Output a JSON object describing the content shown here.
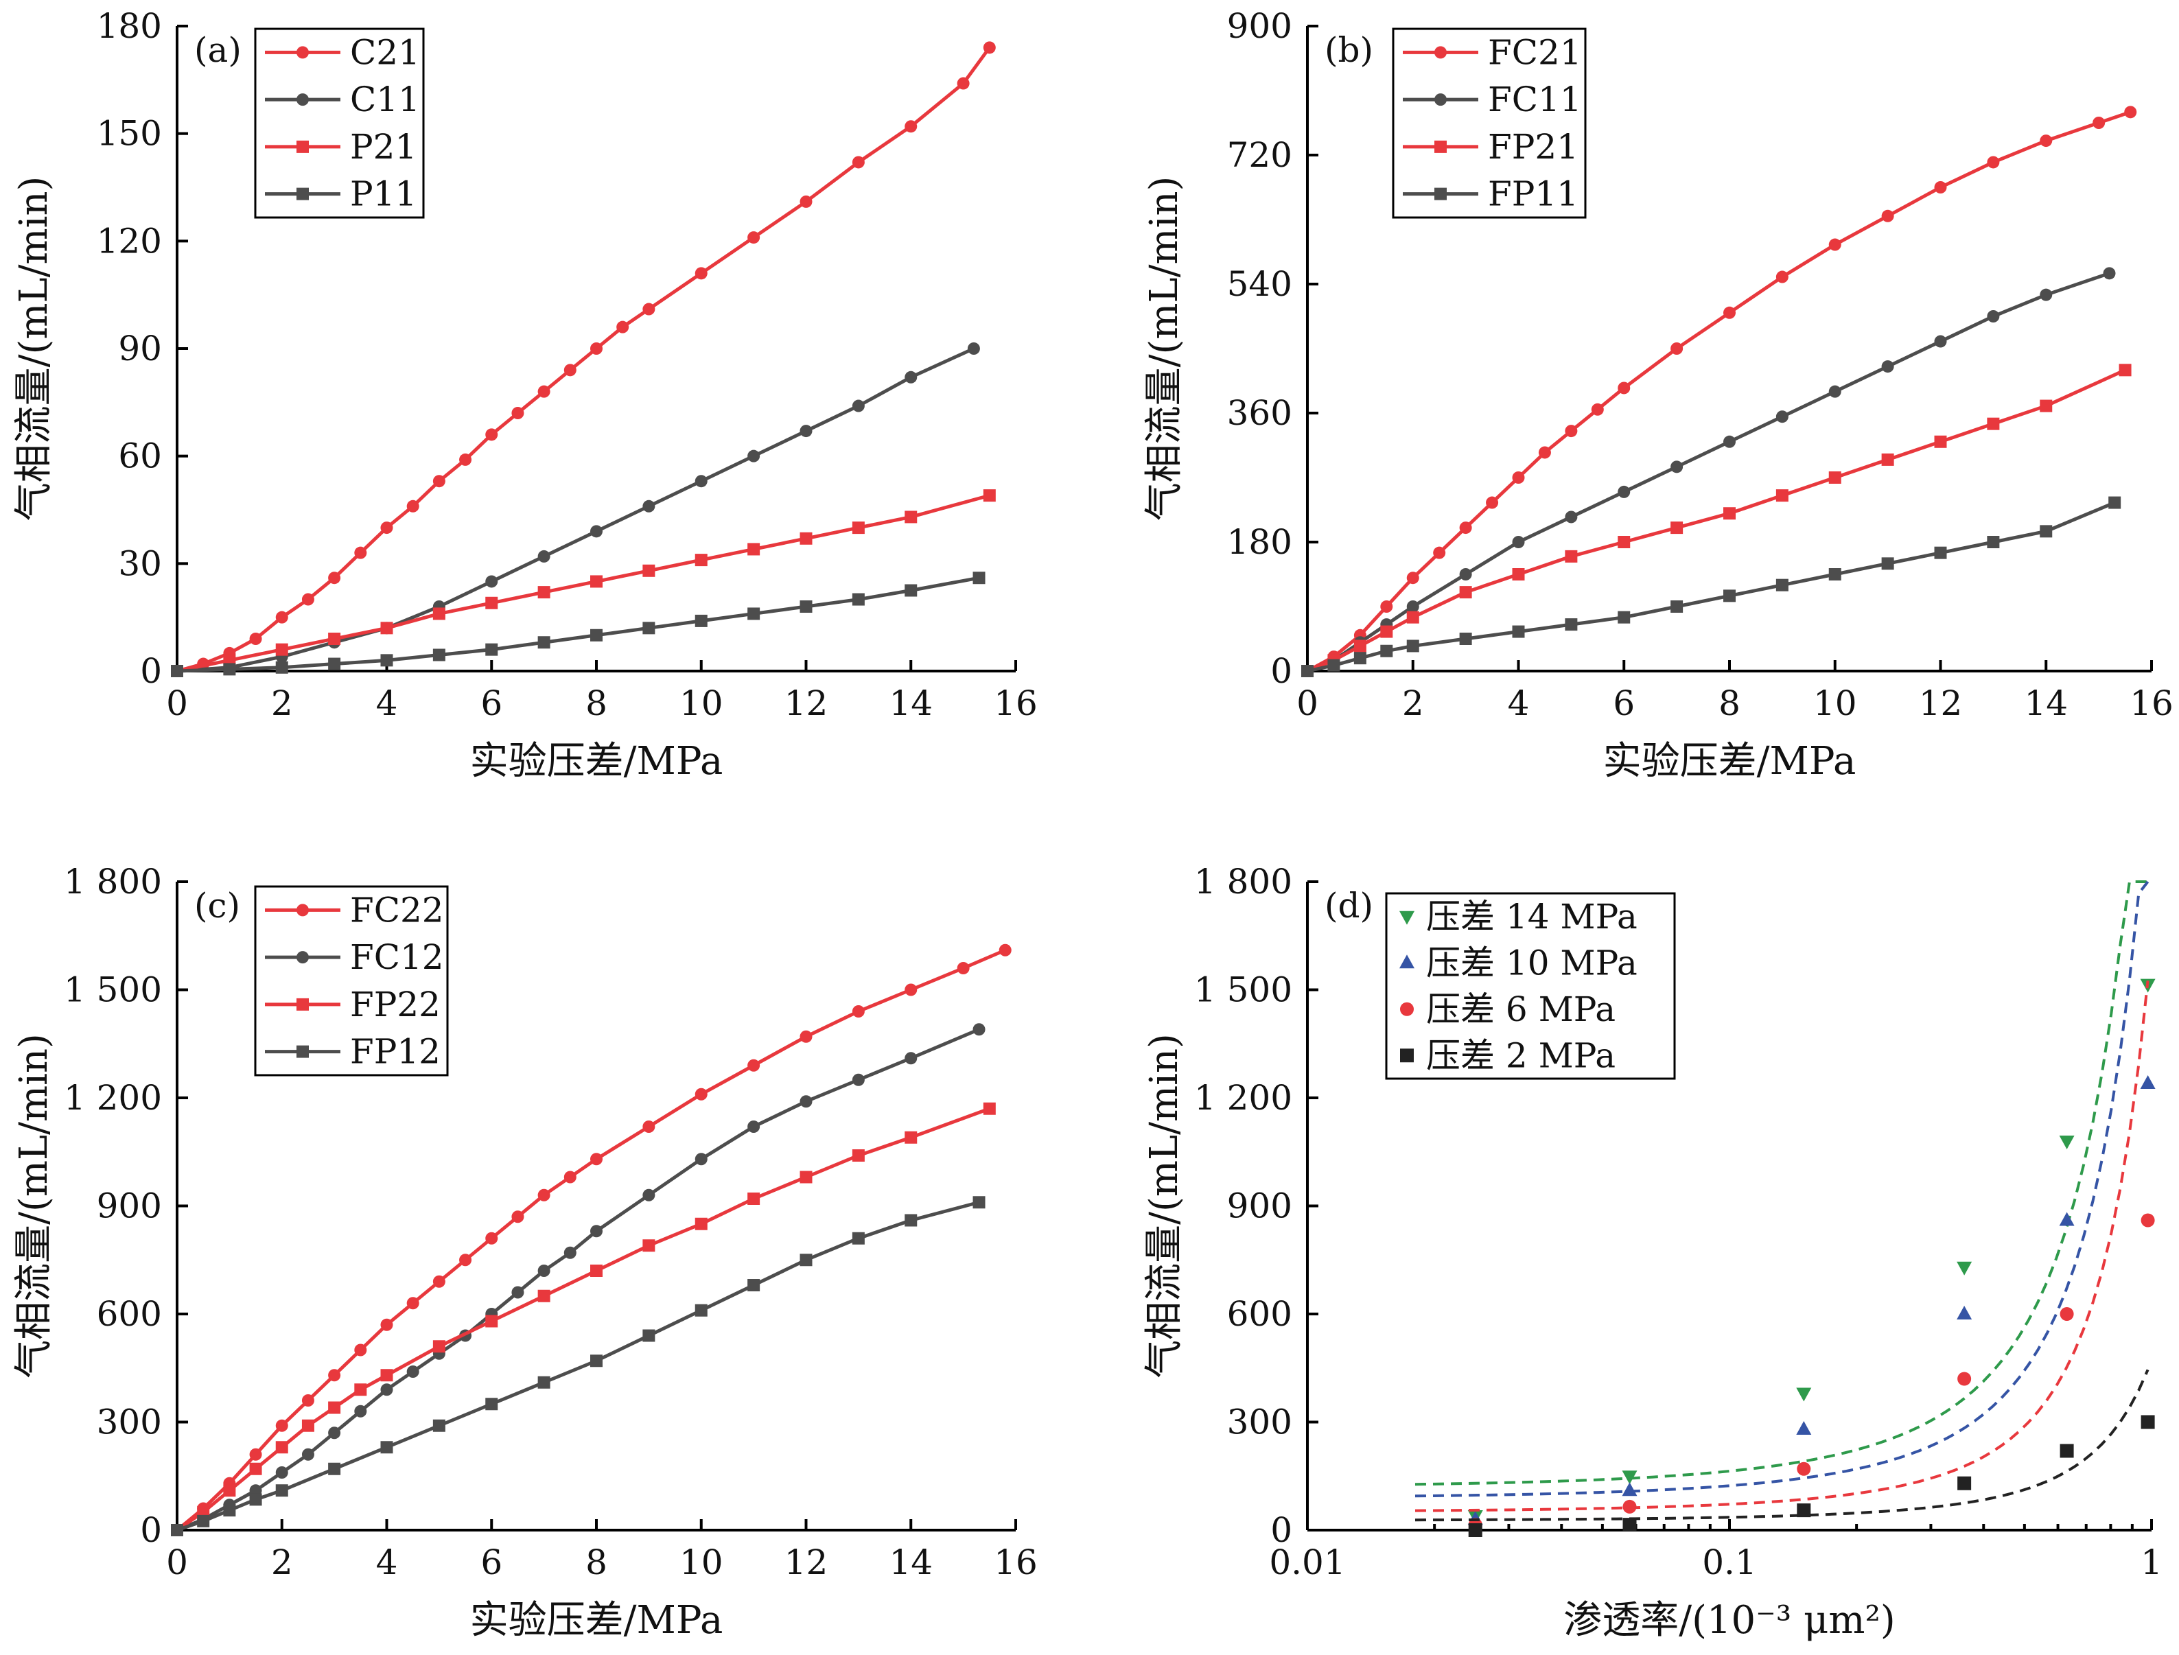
{
  "chart_data": [
    {
      "type": "line",
      "panel_label": "(a)",
      "xlabel": "实验压差/MPa",
      "ylabel": "气相流量/(mL/min)",
      "xlim": [
        0,
        16
      ],
      "ylim": [
        0,
        180
      ],
      "xticks": [
        0,
        2,
        4,
        6,
        8,
        10,
        12,
        14,
        16
      ],
      "xtick_labels": [
        "0",
        "2",
        "4",
        "6",
        "8",
        "10",
        "12",
        "14",
        "16"
      ],
      "yticks": [
        0,
        30,
        60,
        90,
        120,
        150,
        180
      ],
      "ytick_labels": [
        "0",
        "30",
        "60",
        "90",
        "120",
        "150",
        "180"
      ],
      "legend_position": "top-left",
      "grid": false,
      "series": [
        {
          "name": "C21",
          "color": "#e8383d",
          "marker": "circle",
          "x": [
            0,
            0.5,
            1,
            1.5,
            2,
            2.5,
            3,
            3.5,
            4,
            4.5,
            5,
            5.5,
            6,
            6.5,
            7,
            7.5,
            8,
            8.5,
            9,
            10,
            11,
            12,
            13,
            14,
            15,
            15.5
          ],
          "y": [
            0,
            2,
            5,
            9,
            15,
            20,
            26,
            33,
            40,
            46,
            53,
            59,
            66,
            72,
            78,
            84,
            90,
            96,
            101,
            111,
            121,
            131,
            142,
            152,
            164,
            174
          ]
        },
        {
          "name": "C11",
          "color": "#4d4d4d",
          "marker": "circle",
          "x": [
            0,
            1,
            2,
            3,
            4,
            5,
            6,
            7,
            8,
            9,
            10,
            11,
            12,
            13,
            14,
            15.2
          ],
          "y": [
            0,
            1,
            4,
            8,
            12,
            18,
            25,
            32,
            39,
            46,
            53,
            60,
            67,
            74,
            82,
            90
          ]
        },
        {
          "name": "P21",
          "color": "#e8383d",
          "marker": "square",
          "x": [
            0,
            1,
            2,
            3,
            4,
            5,
            6,
            7,
            8,
            9,
            10,
            11,
            12,
            13,
            14,
            15.5
          ],
          "y": [
            0,
            3,
            6,
            9,
            12,
            16,
            19,
            22,
            25,
            28,
            31,
            34,
            37,
            40,
            43,
            49
          ]
        },
        {
          "name": "P11",
          "color": "#4d4d4d",
          "marker": "square",
          "x": [
            0,
            1,
            2,
            3,
            4,
            5,
            6,
            7,
            8,
            9,
            10,
            11,
            12,
            13,
            14,
            15.3
          ],
          "y": [
            0,
            0.5,
            1,
            2,
            3,
            4.5,
            6,
            8,
            10,
            12,
            14,
            16,
            18,
            20,
            22.5,
            26
          ]
        }
      ]
    },
    {
      "type": "line",
      "panel_label": "(b)",
      "xlabel": "实验压差/MPa",
      "ylabel": "气相流量/(mL/min)",
      "xlim": [
        0,
        16
      ],
      "ylim": [
        0,
        900
      ],
      "xticks": [
        0,
        2,
        4,
        6,
        8,
        10,
        12,
        14,
        16
      ],
      "xtick_labels": [
        "0",
        "2",
        "4",
        "6",
        "8",
        "10",
        "12",
        "14",
        "16"
      ],
      "yticks": [
        0,
        180,
        360,
        540,
        720,
        900
      ],
      "ytick_labels": [
        "0",
        "180",
        "360",
        "540",
        "720",
        "900"
      ],
      "legend_position": "top-left",
      "grid": false,
      "series": [
        {
          "name": "FC21",
          "color": "#e8383d",
          "marker": "circle",
          "x": [
            0,
            0.5,
            1,
            1.5,
            2,
            2.5,
            3,
            3.5,
            4,
            4.5,
            5,
            5.5,
            6,
            7,
            8,
            9,
            10,
            11,
            12,
            13,
            14,
            15,
            15.6
          ],
          "y": [
            0,
            20,
            50,
            90,
            130,
            165,
            200,
            235,
            270,
            305,
            335,
            365,
            395,
            450,
            500,
            550,
            595,
            635,
            675,
            710,
            740,
            765,
            780
          ]
        },
        {
          "name": "FC11",
          "color": "#4d4d4d",
          "marker": "circle",
          "x": [
            0,
            0.5,
            1,
            1.5,
            2,
            3,
            4,
            5,
            6,
            7,
            8,
            9,
            10,
            11,
            12,
            13,
            14,
            15.2
          ],
          "y": [
            0,
            15,
            40,
            65,
            90,
            135,
            180,
            215,
            250,
            285,
            320,
            355,
            390,
            425,
            460,
            495,
            525,
            555
          ]
        },
        {
          "name": "FP21",
          "color": "#e8383d",
          "marker": "square",
          "x": [
            0,
            0.5,
            1,
            1.5,
            2,
            3,
            4,
            5,
            6,
            7,
            8,
            9,
            10,
            11,
            12,
            13,
            14,
            15.5
          ],
          "y": [
            0,
            15,
            35,
            55,
            75,
            110,
            135,
            160,
            180,
            200,
            220,
            245,
            270,
            295,
            320,
            345,
            370,
            420
          ]
        },
        {
          "name": "FP11",
          "color": "#4d4d4d",
          "marker": "square",
          "x": [
            0,
            0.5,
            1,
            1.5,
            2,
            3,
            4,
            5,
            6,
            7,
            8,
            9,
            10,
            11,
            12,
            13,
            14,
            15.3
          ],
          "y": [
            0,
            8,
            18,
            28,
            35,
            45,
            55,
            65,
            75,
            90,
            105,
            120,
            135,
            150,
            165,
            180,
            195,
            235
          ]
        }
      ]
    },
    {
      "type": "line",
      "panel_label": "(c)",
      "xlabel": "实验压差/MPa",
      "ylabel": "气相流量/(mL/min)",
      "xlim": [
        0,
        16
      ],
      "ylim": [
        0,
        1800
      ],
      "xticks": [
        0,
        2,
        4,
        6,
        8,
        10,
        12,
        14,
        16
      ],
      "xtick_labels": [
        "0",
        "2",
        "4",
        "6",
        "8",
        "10",
        "12",
        "14",
        "16"
      ],
      "yticks": [
        0,
        300,
        600,
        900,
        1200,
        1500,
        1800
      ],
      "ytick_labels": [
        "0",
        "300",
        "600",
        "900",
        "1 200",
        "1 500",
        "1 800"
      ],
      "legend_position": "top-left",
      "grid": false,
      "series": [
        {
          "name": "FC22",
          "color": "#e8383d",
          "marker": "circle",
          "x": [
            0,
            0.5,
            1,
            1.5,
            2,
            2.5,
            3,
            3.5,
            4,
            4.5,
            5,
            5.5,
            6,
            6.5,
            7,
            7.5,
            8,
            9,
            10,
            11,
            12,
            13,
            14,
            15,
            15.8
          ],
          "y": [
            0,
            60,
            130,
            210,
            290,
            360,
            430,
            500,
            570,
            630,
            690,
            750,
            810,
            870,
            930,
            980,
            1030,
            1120,
            1210,
            1290,
            1370,
            1440,
            1500,
            1560,
            1610
          ]
        },
        {
          "name": "FC12",
          "color": "#4d4d4d",
          "marker": "circle",
          "x": [
            0,
            0.5,
            1,
            1.5,
            2,
            2.5,
            3,
            3.5,
            4,
            4.5,
            5,
            5.5,
            6,
            6.5,
            7,
            7.5,
            8,
            9,
            10,
            11,
            12,
            13,
            14,
            15.3
          ],
          "y": [
            0,
            30,
            70,
            110,
            160,
            210,
            270,
            330,
            390,
            440,
            490,
            540,
            600,
            660,
            720,
            770,
            830,
            930,
            1030,
            1120,
            1190,
            1250,
            1310,
            1390
          ]
        },
        {
          "name": "FP22",
          "color": "#e8383d",
          "marker": "square",
          "x": [
            0,
            0.5,
            1,
            1.5,
            2,
            2.5,
            3,
            3.5,
            4,
            5,
            6,
            7,
            8,
            9,
            10,
            11,
            12,
            13,
            14,
            15.5
          ],
          "y": [
            0,
            50,
            110,
            170,
            230,
            290,
            340,
            390,
            430,
            510,
            580,
            650,
            720,
            790,
            850,
            920,
            980,
            1040,
            1090,
            1170
          ]
        },
        {
          "name": "FP12",
          "color": "#4d4d4d",
          "marker": "square",
          "x": [
            0,
            0.5,
            1,
            1.5,
            2,
            3,
            4,
            5,
            6,
            7,
            8,
            9,
            10,
            11,
            12,
            13,
            14,
            15.3
          ],
          "y": [
            0,
            25,
            55,
            85,
            110,
            170,
            230,
            290,
            350,
            410,
            470,
            540,
            610,
            680,
            750,
            810,
            860,
            910
          ]
        }
      ]
    },
    {
      "type": "scatter",
      "panel_label": "(d)",
      "xlabel": "渗透率/(10⁻³ μm²)",
      "ylabel": "气相流量/(mL/min)",
      "xscale": "log",
      "xlim": [
        0.01,
        1
      ],
      "ylim": [
        0,
        1800
      ],
      "xticks": [
        0.01,
        0.1,
        1
      ],
      "xtick_labels": [
        "0.01",
        "0.1",
        "1"
      ],
      "yticks": [
        0,
        300,
        600,
        900,
        1200,
        1500,
        1800
      ],
      "ytick_labels": [
        "0",
        "300",
        "600",
        "900",
        "1 200",
        "1 500",
        "1 800"
      ],
      "legend_position": "top-left",
      "grid": false,
      "fit_lines": "dashed exponential trend per series",
      "series": [
        {
          "name": "压差 14 MPa",
          "color": "#2e9a4b",
          "marker": "triangle-down",
          "x": [
            0.025,
            0.058,
            0.15,
            0.36,
            0.63,
            0.98
          ],
          "y": [
            40,
            150,
            380,
            730,
            1080,
            1515
          ]
        },
        {
          "name": "压差 10 MPa",
          "color": "#3554a5",
          "marker": "triangle-up",
          "x": [
            0.025,
            0.058,
            0.15,
            0.36,
            0.63,
            0.98
          ],
          "y": [
            30,
            110,
            280,
            600,
            860,
            1240
          ]
        },
        {
          "name": "压差 6 MPa",
          "color": "#e8383d",
          "marker": "circle",
          "x": [
            0.025,
            0.058,
            0.15,
            0.36,
            0.63,
            0.98
          ],
          "y": [
            15,
            65,
            170,
            420,
            600,
            860
          ]
        },
        {
          "name": "压差 2 MPa",
          "color": "#222222",
          "marker": "square",
          "x": [
            0.025,
            0.058,
            0.15,
            0.36,
            0.63,
            0.98
          ],
          "y": [
            0,
            15,
            55,
            130,
            220,
            300
          ]
        }
      ]
    }
  ]
}
